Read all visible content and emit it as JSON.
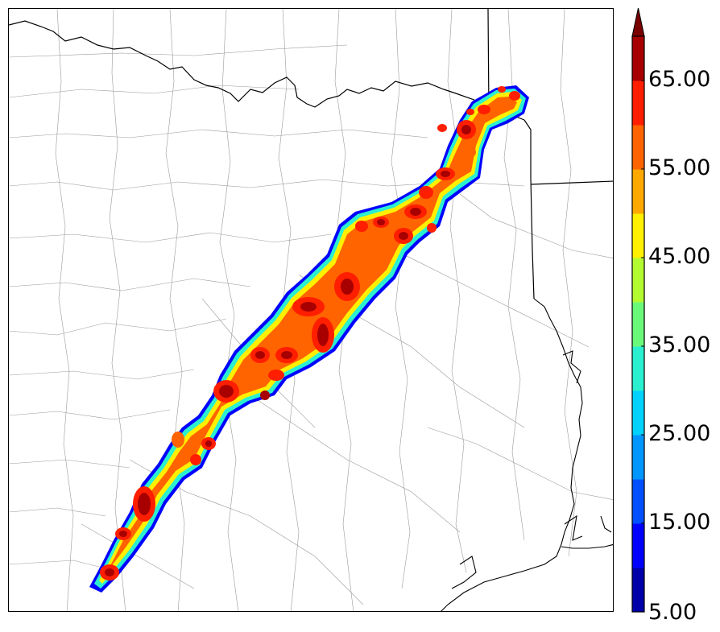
{
  "map": {
    "field": "simulated radar reflectivity swath",
    "basemap": [
      "county-boundaries",
      "state-boundaries",
      "coastline"
    ]
  },
  "colorbar": {
    "min_label": "5.00",
    "tick_labels": [
      "15.00",
      "25.00",
      "35.00",
      "45.00",
      "55.00",
      "65.00"
    ],
    "extend": "max",
    "levels": [
      5,
      10,
      15,
      20,
      25,
      30,
      35,
      40,
      45,
      50,
      55,
      60,
      65,
      70
    ],
    "colors": [
      "#0000aa",
      "#0000ff",
      "#0050ff",
      "#0096ff",
      "#00d2ff",
      "#2af0d0",
      "#6afa7a",
      "#b4fa30",
      "#fff000",
      "#ffa800",
      "#ff6400",
      "#ff1e00",
      "#a80000"
    ],
    "over_color": "#7a0000"
  }
}
